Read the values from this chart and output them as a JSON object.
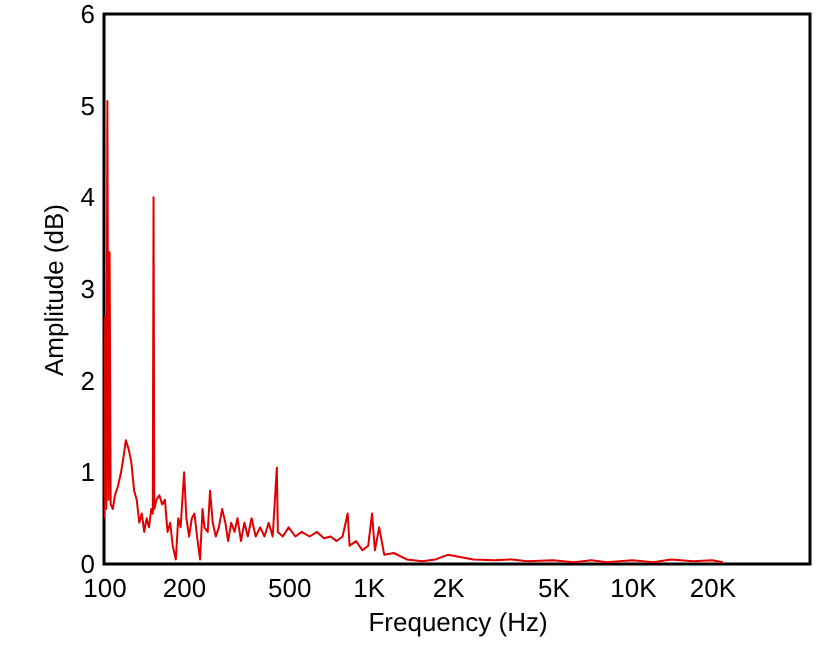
{
  "chart_data": {
    "type": "line",
    "xlabel": "Frequency (Hz)",
    "ylabel": "Amplitude (dB)",
    "log": "x",
    "grid": false,
    "marker": "none",
    "line_style": "solid",
    "xlim": [
      100,
      47000
    ],
    "ylim": [
      0,
      6
    ],
    "xticks": [
      100,
      200,
      500,
      {
        "value": 1000,
        "label": "1K"
      },
      {
        "value": 2000,
        "label": "2K"
      },
      {
        "value": 5000,
        "label": "5K"
      },
      {
        "value": 10000,
        "label": "10K"
      },
      {
        "value": 20000,
        "label": "20K"
      }
    ],
    "yticks": [
      0,
      1,
      2,
      3,
      4,
      5,
      6
    ],
    "x": [
      100,
      101,
      102,
      103,
      104,
      105,
      106,
      108,
      110,
      113,
      116,
      119,
      121,
      124,
      127,
      130,
      133,
      136,
      139,
      142,
      145,
      148,
      151,
      153,
      154,
      155,
      158,
      162,
      166,
      170,
      174,
      178,
      182,
      187,
      191,
      195,
      201,
      205,
      210,
      215,
      220,
      225,
      231,
      236,
      240,
      247,
      252,
      258,
      265,
      272,
      280,
      288,
      295,
      303,
      312,
      320,
      330,
      340,
      350,
      362,
      375,
      390,
      405,
      420,
      435,
      451,
      455,
      475,
      500,
      530,
      560,
      600,
      640,
      680,
      720,
      760,
      800,
      836,
      850,
      900,
      950,
      1000,
      1034,
      1060,
      1100,
      1150,
      1250,
      1400,
      1600,
      1800,
      2000,
      2200,
      2500,
      3000,
      3500,
      4000,
      5000,
      6000,
      7000,
      8000,
      10000,
      12000,
      14000,
      17000,
      20000,
      22000
    ],
    "series": [
      {
        "color": "#e00000",
        "values": [
          0.5,
          2.7,
          0.6,
          5.05,
          0.7,
          3.4,
          0.65,
          0.6,
          0.75,
          0.85,
          1.0,
          1.2,
          1.35,
          1.25,
          1.1,
          0.8,
          0.7,
          0.45,
          0.55,
          0.35,
          0.5,
          0.4,
          0.6,
          0.55,
          4.0,
          0.6,
          0.7,
          0.75,
          0.65,
          0.7,
          0.35,
          0.45,
          0.2,
          0.05,
          0.5,
          0.4,
          1.0,
          0.5,
          0.3,
          0.5,
          0.55,
          0.3,
          0.05,
          0.6,
          0.4,
          0.35,
          0.8,
          0.45,
          0.3,
          0.4,
          0.6,
          0.45,
          0.25,
          0.45,
          0.35,
          0.5,
          0.25,
          0.45,
          0.3,
          0.5,
          0.3,
          0.4,
          0.3,
          0.45,
          0.3,
          1.05,
          0.35,
          0.3,
          0.4,
          0.3,
          0.35,
          0.3,
          0.35,
          0.28,
          0.3,
          0.25,
          0.3,
          0.55,
          0.2,
          0.25,
          0.15,
          0.2,
          0.55,
          0.15,
          0.4,
          0.1,
          0.12,
          0.05,
          0.03,
          0.05,
          0.1,
          0.08,
          0.05,
          0.04,
          0.05,
          0.03,
          0.04,
          0.02,
          0.04,
          0.02,
          0.04,
          0.02,
          0.05,
          0.03,
          0.04,
          0.02
        ]
      }
    ]
  }
}
